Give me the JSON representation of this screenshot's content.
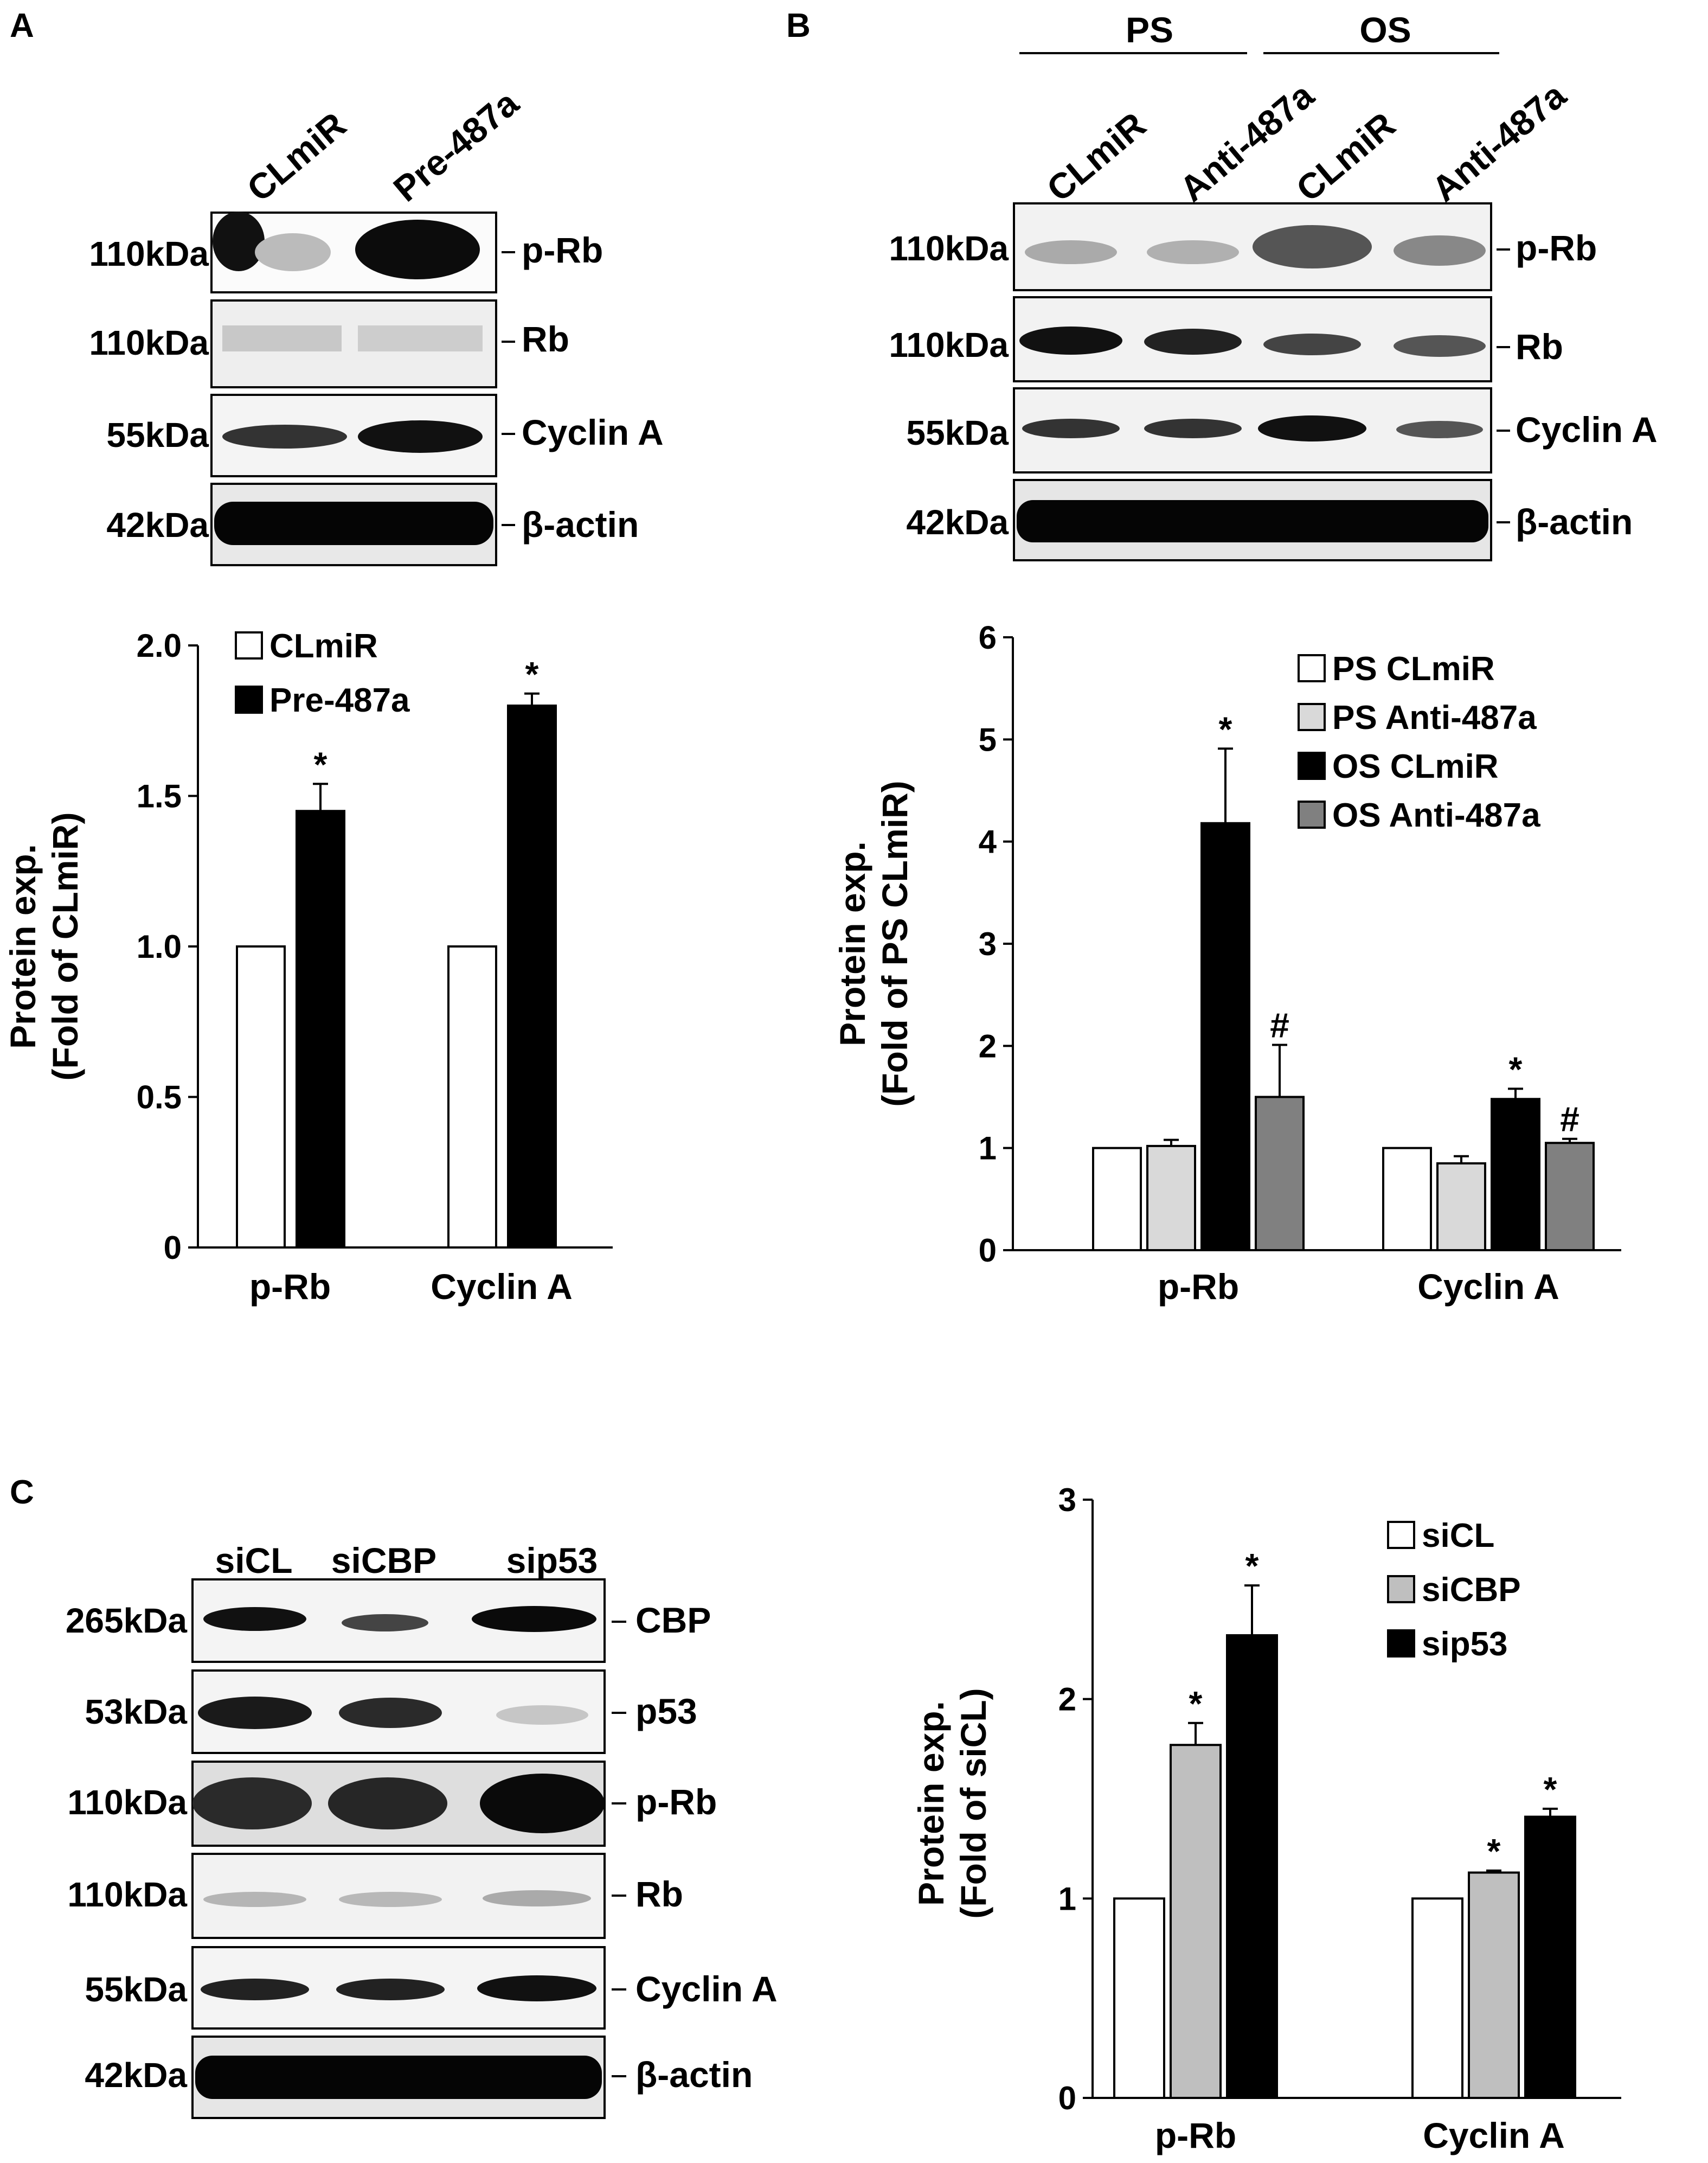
{
  "panels": {
    "A": {
      "letter": "A",
      "lanes": [
        "CLmiR",
        "Pre-487a"
      ],
      "blots": [
        {
          "kda": "110kDa",
          "protein": "p-Rb"
        },
        {
          "kda": "110kDa",
          "protein": "Rb"
        },
        {
          "kda": "55kDa",
          "protein": "Cyclin A"
        },
        {
          "kda": "42kDa",
          "protein": "β-actin"
        }
      ]
    },
    "B": {
      "letter": "B",
      "groups": [
        "PS",
        "OS"
      ],
      "lanes": [
        "CLmiR",
        "Anti-487a",
        "CLmiR",
        "Anti-487a"
      ],
      "blots": [
        {
          "kda": "110kDa",
          "protein": "p-Rb"
        },
        {
          "kda": "110kDa",
          "protein": "Rb"
        },
        {
          "kda": "55kDa",
          "protein": "Cyclin A"
        },
        {
          "kda": "42kDa",
          "protein": "β-actin"
        }
      ]
    },
    "C": {
      "letter": "C",
      "lanes": [
        "siCL",
        "siCBP",
        "sip53"
      ],
      "blots": [
        {
          "kda": "265kDa",
          "protein": "CBP"
        },
        {
          "kda": "53kDa",
          "protein": "p53"
        },
        {
          "kda": "110kDa",
          "protein": "p-Rb"
        },
        {
          "kda": "110kDa",
          "protein": "Rb"
        },
        {
          "kda": "55kDa",
          "protein": "Cyclin A"
        },
        {
          "kda": "42kDa",
          "protein": "β-actin"
        }
      ]
    }
  },
  "chart_data": [
    {
      "panel": "A",
      "type": "bar",
      "categories": [
        "p-Rb",
        "Cyclin A"
      ],
      "ylabel": "Protein exp. (Fold of CLmiR)",
      "ylim": [
        0,
        2.0
      ],
      "yticks": [
        "0",
        "0.5",
        "1.0",
        "1.5",
        "2.0"
      ],
      "legend_position": "top-left",
      "series": [
        {
          "name": "CLmiR",
          "color": "#ffffff",
          "values": [
            1.0,
            1.0
          ],
          "errors": [
            0,
            0
          ],
          "marks": [
            "",
            ""
          ]
        },
        {
          "name": "Pre-487a",
          "color": "#000000",
          "values": [
            1.45,
            1.8
          ],
          "errors": [
            0.09,
            0.04
          ],
          "marks": [
            "*",
            "*"
          ]
        }
      ]
    },
    {
      "panel": "B",
      "type": "bar",
      "categories": [
        "p-Rb",
        "Cyclin A"
      ],
      "ylabel": "Protein exp. (Fold of PS CLmiR)",
      "ylim": [
        0,
        6
      ],
      "yticks": [
        "0",
        "1",
        "2",
        "3",
        "4",
        "5",
        "6"
      ],
      "legend_position": "top-right",
      "series": [
        {
          "name": "PS CLmiR",
          "color": "#ffffff",
          "values": [
            1.0,
            1.0
          ],
          "errors": [
            0,
            0
          ],
          "marks": [
            "",
            ""
          ]
        },
        {
          "name": "PS Anti-487a",
          "color": "#d9d9d9",
          "values": [
            1.02,
            0.85
          ],
          "errors": [
            0.06,
            0.07
          ],
          "marks": [
            "",
            ""
          ]
        },
        {
          "name": "OS CLmiR",
          "color": "#000000",
          "values": [
            4.18,
            1.48
          ],
          "errors": [
            0.73,
            0.1
          ],
          "marks": [
            "*",
            "*"
          ]
        },
        {
          "name": "OS Anti-487a",
          "color": "#808080",
          "values": [
            1.5,
            1.05
          ],
          "errors": [
            0.51,
            0.04
          ],
          "marks": [
            "#",
            "#"
          ]
        }
      ]
    },
    {
      "panel": "C",
      "type": "bar",
      "categories": [
        "p-Rb",
        "Cyclin A"
      ],
      "ylabel": "Protein exp. (Fold of siCL)",
      "ylim": [
        0,
        3
      ],
      "yticks": [
        "0",
        "1",
        "2",
        "3"
      ],
      "legend_position": "top-right",
      "series": [
        {
          "name": "siCL",
          "color": "#ffffff",
          "values": [
            1.0,
            1.0
          ],
          "errors": [
            0,
            0
          ],
          "marks": [
            "",
            ""
          ]
        },
        {
          "name": "siCBP",
          "color": "#bfbfbf",
          "values": [
            1.77,
            1.13
          ],
          "errors": [
            0.11,
            0.01
          ],
          "marks": [
            "*",
            "*"
          ]
        },
        {
          "name": "sip53",
          "color": "#000000",
          "values": [
            2.32,
            1.41
          ],
          "errors": [
            0.25,
            0.04
          ],
          "marks": [
            "*",
            "*"
          ]
        }
      ]
    }
  ]
}
